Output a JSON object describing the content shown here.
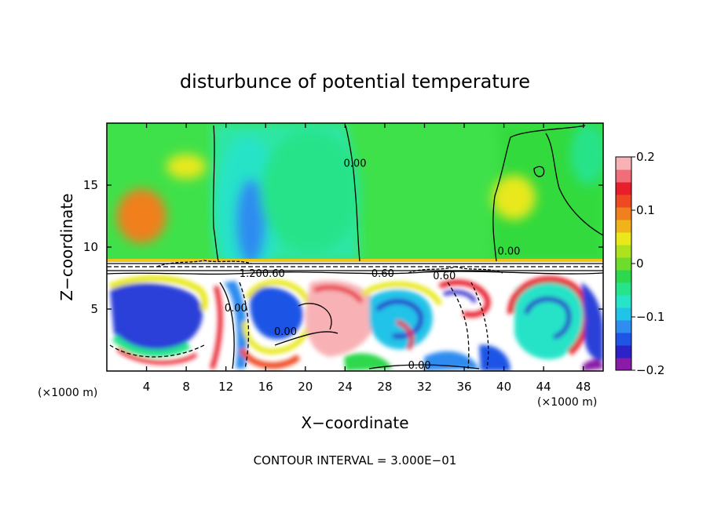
{
  "chart_data": {
    "type": "heatmap",
    "title": "disturbunce of potential temperature",
    "xlabel": "X−coordinate",
    "ylabel": "Z−coordinate",
    "x_unit_left": "(×1000 m)",
    "x_unit_right": "(×1000 m)",
    "footer": "CONTOUR INTERVAL = 3.000E−01",
    "xlim": [
      0,
      50
    ],
    "ylim": [
      0,
      20
    ],
    "x_ticks": [
      4,
      8,
      12,
      16,
      20,
      24,
      28,
      32,
      36,
      40,
      44,
      48
    ],
    "x_tick_labels": [
      "4",
      "8",
      "12",
      "16",
      "20",
      "24",
      "28",
      "32",
      "36",
      "40",
      "44",
      "48"
    ],
    "y_ticks": [
      5,
      10,
      15
    ],
    "y_tick_labels": [
      "5",
      "10",
      "15"
    ],
    "colorbar": {
      "range": [
        -0.2,
        0.2
      ],
      "ticks": [
        "0.2",
        "0.1",
        "0",
        "−0.1",
        "−0.2"
      ],
      "colors": [
        "#8a1aa8",
        "#2b22c8",
        "#1f55e6",
        "#2f8cf0",
        "#22c3e8",
        "#27e3c8",
        "#27e38a",
        "#2ed84e",
        "#6ddc2a",
        "#aee21e",
        "#e8e81a",
        "#f0b41a",
        "#f07f1e",
        "#ee4a22",
        "#e81e2a",
        "#f06e7a",
        "#f8b2b6"
      ]
    },
    "contour_labels": [
      {
        "text": "0.00",
        "x": 25.0,
        "z": 16.5
      },
      {
        "text": "0.00",
        "x": 40.5,
        "z": 9.4
      },
      {
        "text": "1.20",
        "x": 14.5,
        "z": 7.6
      },
      {
        "text": "0.60",
        "x": 16.8,
        "z": 7.6
      },
      {
        "text": "0.60",
        "x": 34.0,
        "z": 7.4
      },
      {
        "text": "0.60",
        "x": 27.8,
        "z": 7.6
      },
      {
        "text": "0.00",
        "x": 13.0,
        "z": 4.8
      },
      {
        "text": "0.00",
        "x": 18.0,
        "z": 2.9
      },
      {
        "text": "0.00",
        "x": 31.5,
        "z": 0.2
      }
    ],
    "field_features": [
      {
        "kind": "warm",
        "x": 3.5,
        "z": 12.5,
        "rx": 2.5,
        "rz": 2.2,
        "value": 0.1
      },
      {
        "kind": "warm",
        "x": 8.0,
        "z": 16.5,
        "rx": 2.0,
        "rz": 1.0,
        "value": 0.06
      },
      {
        "kind": "warm",
        "x": 41.0,
        "z": 14.0,
        "rx": 2.2,
        "rz": 1.8,
        "value": 0.05
      },
      {
        "kind": "cold",
        "x": 14.2,
        "z": 13.0,
        "rx": 3.2,
        "rz": 6.0,
        "value": -0.08
      },
      {
        "kind": "cold",
        "x": 14.5,
        "z": 12.0,
        "rx": 1.5,
        "rz": 3.5,
        "value": -0.13
      },
      {
        "kind": "cold",
        "x": 20.5,
        "z": 14.5,
        "rx": 5.0,
        "rz": 5.0,
        "value": -0.04
      },
      {
        "kind": "cold",
        "x": 48.5,
        "z": 17.5,
        "rx": 1.8,
        "rz": 2.5,
        "value": -0.04
      }
    ]
  }
}
